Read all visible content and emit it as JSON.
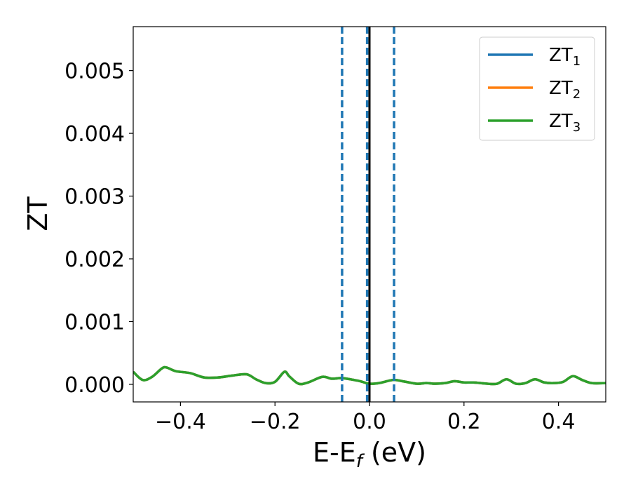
{
  "chart_data": {
    "type": "line",
    "xlabel": "E-E",
    "xlabel_sub": "f",
    "xlabel_unit": " (eV)",
    "ylabel": "ZT",
    "xlim": [
      -0.5,
      0.5
    ],
    "ylim": [
      -0.00028,
      0.0057
    ],
    "x_ticks": [
      -0.4,
      -0.2,
      0.0,
      0.2,
      0.4
    ],
    "x_tick_labels": [
      "−0.4",
      "−0.2",
      "0.0",
      "0.2",
      "0.4"
    ],
    "y_ticks": [
      0.0,
      0.001,
      0.002,
      0.003,
      0.004,
      0.005
    ],
    "y_tick_labels": [
      "0.000",
      "0.001",
      "0.002",
      "0.003",
      "0.004",
      "0.005"
    ],
    "grid": false,
    "legend_position": "top-right",
    "legend": [
      {
        "main": "ZT",
        "sub": "1",
        "color": "#1f77b4"
      },
      {
        "main": "ZT",
        "sub": "2",
        "color": "#ff7f0e"
      },
      {
        "main": "ZT",
        "sub": "3",
        "color": "#2ca02c"
      }
    ],
    "vertical_lines": [
      {
        "x": -0.058,
        "style": "dashed",
        "color": "#1f77b4"
      },
      {
        "x": -0.005,
        "style": "dashed",
        "color": "#1f77b4"
      },
      {
        "x": 0.052,
        "style": "dashed",
        "color": "#1f77b4"
      },
      {
        "x": 0.0,
        "style": "solid",
        "color": "#000000"
      }
    ],
    "x": [
      -0.5,
      -0.48,
      -0.46,
      -0.44,
      -0.43,
      -0.41,
      -0.38,
      -0.35,
      -0.32,
      -0.29,
      -0.26,
      -0.24,
      -0.22,
      -0.2,
      -0.18,
      -0.17,
      -0.15,
      -0.13,
      -0.1,
      -0.08,
      -0.06,
      -0.04,
      -0.02,
      0.0,
      0.02,
      0.05,
      0.07,
      0.1,
      0.12,
      0.14,
      0.16,
      0.18,
      0.2,
      0.22,
      0.25,
      0.27,
      0.29,
      0.31,
      0.33,
      0.35,
      0.37,
      0.39,
      0.41,
      0.43,
      0.45,
      0.47,
      0.5
    ],
    "series": [
      {
        "name": "ZT1",
        "color": "#1f77b4",
        "values": [
          0.0002,
          7e-05,
          0.00012,
          0.00025,
          0.00027,
          0.00021,
          0.00018,
          0.00011,
          0.00011,
          0.00014,
          0.00016,
          8e-05,
          2e-05,
          4e-05,
          0.0002,
          0.00013,
          1e-05,
          3e-05,
          0.00012,
          9e-05,
          0.0001,
          8e-05,
          5e-05,
          1e-05,
          2e-05,
          7e-05,
          5e-05,
          1e-05,
          2e-05,
          1e-05,
          2e-05,
          5e-05,
          3e-05,
          3e-05,
          1e-05,
          1e-05,
          8e-05,
          1e-05,
          2e-05,
          8e-05,
          3e-05,
          2e-05,
          4e-05,
          0.00013,
          7e-05,
          2e-05,
          2e-05
        ]
      },
      {
        "name": "ZT2",
        "color": "#ff7f0e",
        "values": [
          0.0002,
          7e-05,
          0.00012,
          0.00025,
          0.00027,
          0.00021,
          0.00018,
          0.00011,
          0.00011,
          0.00014,
          0.00016,
          8e-05,
          2e-05,
          4e-05,
          0.0002,
          0.00013,
          1e-05,
          3e-05,
          0.00012,
          9e-05,
          0.0001,
          8e-05,
          5e-05,
          1e-05,
          2e-05,
          7e-05,
          5e-05,
          1e-05,
          2e-05,
          1e-05,
          2e-05,
          5e-05,
          3e-05,
          3e-05,
          1e-05,
          1e-05,
          8e-05,
          1e-05,
          2e-05,
          8e-05,
          3e-05,
          2e-05,
          4e-05,
          0.00013,
          7e-05,
          2e-05,
          2e-05
        ]
      },
      {
        "name": "ZT3",
        "color": "#2ca02c",
        "values": [
          0.0002,
          7e-05,
          0.00012,
          0.00025,
          0.00027,
          0.00021,
          0.00018,
          0.00011,
          0.00011,
          0.00014,
          0.00016,
          8e-05,
          2e-05,
          4e-05,
          0.0002,
          0.00013,
          1e-05,
          3e-05,
          0.00012,
          9e-05,
          0.0001,
          8e-05,
          5e-05,
          1e-05,
          2e-05,
          7e-05,
          5e-05,
          1e-05,
          2e-05,
          1e-05,
          2e-05,
          5e-05,
          3e-05,
          3e-05,
          1e-05,
          1e-05,
          8e-05,
          1e-05,
          2e-05,
          8e-05,
          3e-05,
          2e-05,
          4e-05,
          0.00013,
          7e-05,
          2e-05,
          2e-05
        ]
      }
    ]
  }
}
